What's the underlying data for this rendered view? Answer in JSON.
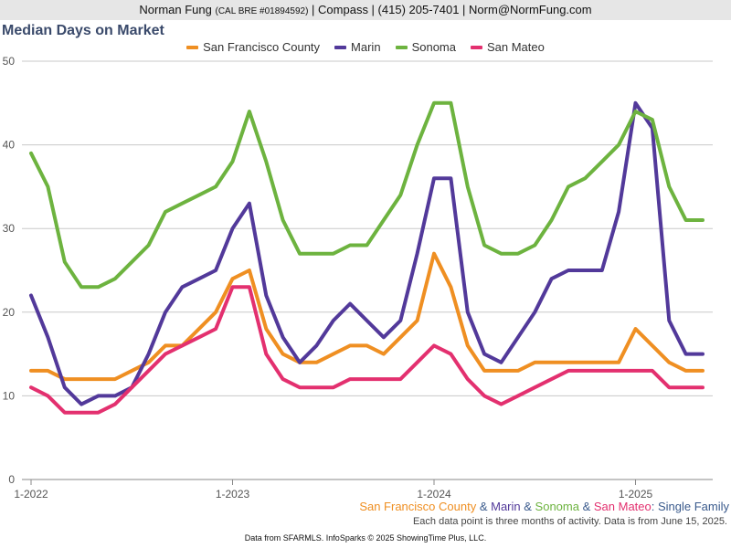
{
  "header": {
    "name": "Norman Fung",
    "license": "(CAL BRE #01894592)",
    "rest": "| Compass | (415) 205-7401 | Norm@NormFung.com"
  },
  "subtitle": {
    "sf": "San Francisco County",
    "amp1": " & ",
    "marin": "Marin",
    "amp2": " & ",
    "sonoma": "Sonoma",
    "amp3": " & ",
    "sanmateo": "San Mateo",
    "suffix": ": Single Family"
  },
  "note": "Each data point is three months of activity. Data is from June 15, 2025.",
  "footer": "Data from SFARMLS. InfoSparks © 2025 ShowingTime Plus, LLC.",
  "colors": {
    "sf": "#ef8f22",
    "marin": "#52399a",
    "sonoma": "#6db33f",
    "sanmateo": "#e3306f",
    "subtitle_suffix": "#3a5a8c"
  },
  "chart_data": {
    "type": "line",
    "title": "Median Days on Market",
    "x": [
      "2022-01",
      "2022-02",
      "2022-03",
      "2022-04",
      "2022-05",
      "2022-06",
      "2022-07",
      "2022-08",
      "2022-09",
      "2022-10",
      "2022-11",
      "2022-12",
      "2023-01",
      "2023-02",
      "2023-03",
      "2023-04",
      "2023-05",
      "2023-06",
      "2023-07",
      "2023-08",
      "2023-09",
      "2023-10",
      "2023-11",
      "2023-12",
      "2024-01",
      "2024-02",
      "2024-03",
      "2024-04",
      "2024-05",
      "2024-06",
      "2024-07",
      "2024-08",
      "2024-09",
      "2024-10",
      "2024-11",
      "2024-12",
      "2025-01",
      "2025-02",
      "2025-03",
      "2025-04",
      "2025-05"
    ],
    "xticks": [
      "1-2022",
      "1-2023",
      "1-2024",
      "1-2025"
    ],
    "ylim": [
      0,
      50
    ],
    "yticks": [
      0,
      10,
      20,
      30,
      40,
      50
    ],
    "grid": true,
    "legend_position": "top",
    "series": [
      {
        "name": "San Francisco County",
        "color": "#ef8f22",
        "values": [
          13,
          13,
          12,
          12,
          12,
          12,
          13,
          14,
          16,
          16,
          18,
          20,
          24,
          25,
          18,
          15,
          14,
          14,
          15,
          16,
          16,
          15,
          17,
          19,
          27,
          23,
          16,
          13,
          13,
          13,
          14,
          14,
          14,
          14,
          14,
          14,
          18,
          16,
          14,
          13,
          13
        ]
      },
      {
        "name": "Marin",
        "color": "#52399a",
        "values": [
          22,
          17,
          11,
          9,
          10,
          10,
          11,
          15,
          20,
          23,
          24,
          25,
          30,
          33,
          22,
          17,
          14,
          16,
          19,
          21,
          19,
          17,
          19,
          27,
          36,
          36,
          20,
          15,
          14,
          17,
          20,
          24,
          25,
          25,
          25,
          32,
          45,
          42,
          19,
          15,
          15
        ]
      },
      {
        "name": "Sonoma",
        "color": "#6db33f",
        "values": [
          39,
          35,
          26,
          23,
          23,
          24,
          26,
          28,
          32,
          33,
          34,
          35,
          38,
          44,
          38,
          31,
          27,
          27,
          27,
          28,
          28,
          31,
          34,
          40,
          45,
          45,
          35,
          28,
          27,
          27,
          28,
          31,
          35,
          36,
          38,
          40,
          44,
          43,
          35,
          31,
          31
        ]
      },
      {
        "name": "San Mateo",
        "color": "#e3306f",
        "values": [
          11,
          10,
          8,
          8,
          8,
          9,
          11,
          13,
          15,
          16,
          17,
          18,
          23,
          23,
          15,
          12,
          11,
          11,
          11,
          12,
          12,
          12,
          12,
          14,
          16,
          15,
          12,
          10,
          9,
          10,
          11,
          12,
          13,
          13,
          13,
          13,
          13,
          13,
          11,
          11,
          11
        ]
      }
    ]
  }
}
